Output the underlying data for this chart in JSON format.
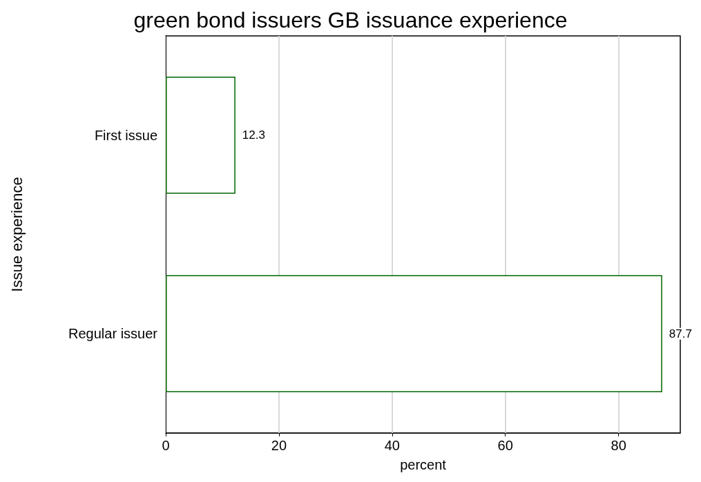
{
  "chart_data": {
    "type": "bar",
    "orientation": "horizontal",
    "title": "green bond issuers GB issuance experience",
    "xlabel": "percent",
    "ylabel": "Issue experience",
    "categories": [
      "First issue",
      "Regular issuer"
    ],
    "values": [
      12.3,
      87.7
    ],
    "color": "#006400",
    "data_labels": true,
    "xlim": [
      0,
      90.9
    ],
    "xticks": [
      0,
      20,
      40,
      60,
      80
    ],
    "grid": "x"
  }
}
